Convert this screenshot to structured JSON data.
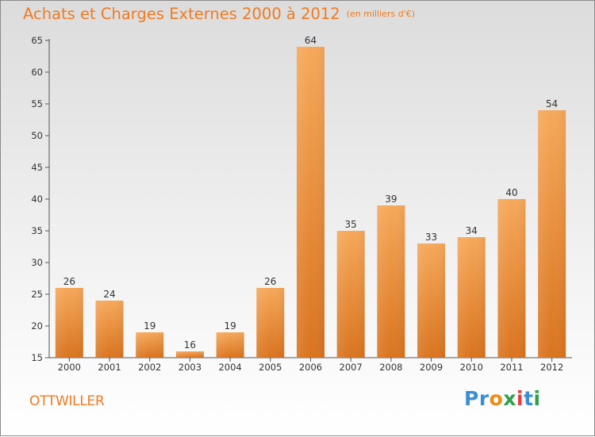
{
  "header": {
    "title": "Achats et Charges Externes 2000 à 2012",
    "subtitle": "(en milliers d'€)"
  },
  "footer": {
    "location": "OTTWILLER",
    "brand": "Proxiti",
    "brand_letters": [
      "P",
      "r",
      "o",
      "x",
      "i",
      "t",
      "i"
    ]
  },
  "colors": {
    "title": "#f07a20",
    "bar_top": "#f6a85a",
    "bar_bottom": "#d9741f",
    "logo": [
      "#3a8fd4",
      "#3a8fd4",
      "#f08a10",
      "#2ea04a",
      "#e83a3a",
      "#3a8fd4",
      "#2ea04a"
    ]
  },
  "chart_data": {
    "type": "bar",
    "title": "Achats et Charges Externes 2000 à 2012",
    "subtitle": "(en milliers d'€)",
    "categories": [
      "2000",
      "2001",
      "2002",
      "2003",
      "2004",
      "2005",
      "2006",
      "2007",
      "2008",
      "2009",
      "2010",
      "2011",
      "2012"
    ],
    "values": [
      26,
      24,
      19,
      16,
      19,
      26,
      64,
      35,
      39,
      33,
      34,
      40,
      54
    ],
    "ylim": [
      15,
      65
    ],
    "yticks": [
      15,
      20,
      25,
      30,
      35,
      40,
      45,
      50,
      55,
      60,
      65
    ],
    "grid": false,
    "data_labels": true
  }
}
